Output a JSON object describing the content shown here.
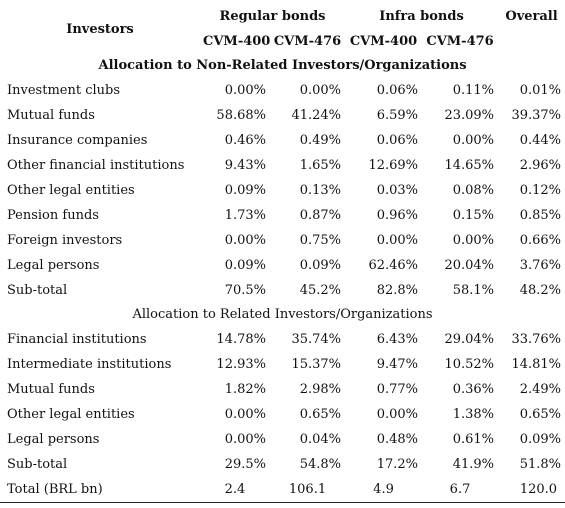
{
  "header": {
    "investors_label": "Investors",
    "groups": [
      "Regular bonds",
      "Infra bonds",
      "Overall"
    ],
    "subheaders": [
      "CVM-400",
      "CVM-476",
      "CVM-400",
      "CVM-476"
    ]
  },
  "section1": {
    "title": "Allocation to Non-Related Investors/Organizations",
    "rows": [
      {
        "label": "Investment clubs",
        "values": [
          "0.00%",
          "0.00%",
          "0.06%",
          "0.11%",
          "0.01%"
        ]
      },
      {
        "label": "Mutual funds",
        "values": [
          "58.68%",
          "41.24%",
          "6.59%",
          "23.09%",
          "39.37%"
        ]
      },
      {
        "label": "Insurance companies",
        "values": [
          "0.46%",
          "0.49%",
          "0.06%",
          "0.00%",
          "0.44%"
        ]
      },
      {
        "label": "Other financial institutions",
        "values": [
          "9.43%",
          "1.65%",
          "12.69%",
          "14.65%",
          "2.96%"
        ]
      },
      {
        "label": "Other legal entities",
        "values": [
          "0.09%",
          "0.13%",
          "0.03%",
          "0.08%",
          "0.12%"
        ]
      },
      {
        "label": "Pension funds",
        "values": [
          "1.73%",
          "0.87%",
          "0.96%",
          "0.15%",
          "0.85%"
        ]
      },
      {
        "label": "Foreign investors",
        "values": [
          "0.00%",
          "0.75%",
          "0.00%",
          "0.00%",
          "0.66%"
        ]
      },
      {
        "label": "Legal persons",
        "values": [
          "0.09%",
          "0.09%",
          "62.46%",
          "20.04%",
          "3.76%"
        ]
      },
      {
        "label": "Sub-total",
        "values": [
          "70.5%",
          "45.2%",
          "82.8%",
          "58.1%",
          "48.2%"
        ]
      }
    ]
  },
  "section2": {
    "title": "Allocation to Related Investors/Organizations",
    "rows": [
      {
        "label": "Financial institutions",
        "values": [
          "14.78%",
          "35.74%",
          "6.43%",
          "29.04%",
          "33.76%"
        ]
      },
      {
        "label": "Intermediate institutions",
        "values": [
          "12.93%",
          "15.37%",
          "9.47%",
          "10.52%",
          "14.81%"
        ]
      },
      {
        "label": "Mutual funds",
        "values": [
          "1.82%",
          "2.98%",
          "0.77%",
          "0.36%",
          "2.49%"
        ]
      },
      {
        "label": "Other legal entities",
        "values": [
          "0.00%",
          "0.65%",
          "0.00%",
          "1.38%",
          "0.65%"
        ]
      },
      {
        "label": "Legal persons",
        "values": [
          "0.00%",
          "0.04%",
          "0.48%",
          "0.61%",
          "0.09%"
        ]
      },
      {
        "label": "Sub-total",
        "values": [
          "29.5%",
          "54.8%",
          "17.2%",
          "41.9%",
          "51.8%"
        ]
      }
    ]
  },
  "total": {
    "label": "Total (BRL bn)",
    "values": [
      "2.4",
      "106.1",
      "4.9",
      "6.7",
      "120.0"
    ]
  }
}
